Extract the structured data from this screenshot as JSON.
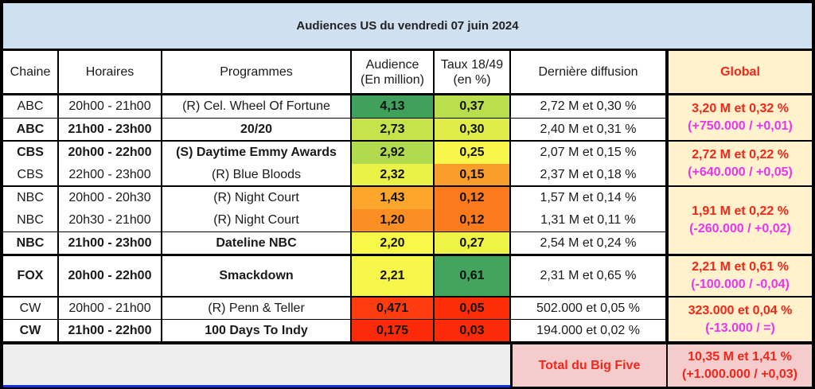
{
  "title": "Audiences US du vendredi 07 juin 2024",
  "headers": {
    "chaine": "Chaine",
    "horaires": "Horaires",
    "programmes": "Programmes",
    "audience_l1": "Audience",
    "audience_l2": "(En million)",
    "taux_l1": "Taux 18/49",
    "taux_l2": "(en %)",
    "derniere": "Dernière diffusion",
    "global": "Global"
  },
  "colors": {
    "title_bg": "#cfe0f1",
    "global_bg": "#fff2cc",
    "global_value": "#f3261a",
    "global_delta": "#ea35f0",
    "total_bg": "#f4cccc",
    "empty_bg": "#eeeeee"
  },
  "rows": [
    {
      "chaine": "ABC",
      "horaires": "20h00 - 21h00",
      "programme": "(R) Cel. Wheel Of Fortune",
      "audience": "4,13",
      "taux": "0,37",
      "derniere": "2,72 M et 0,30 %",
      "bold": false,
      "audience_color": "#3fa15c",
      "taux_color": "#b9de4e"
    },
    {
      "chaine": "ABC",
      "horaires": "21h00 - 23h00",
      "programme": "20/20",
      "audience": "2,73",
      "taux": "0,30",
      "derniere": "2,40 M et 0,31 %",
      "bold": true,
      "audience_color": "#c6e34c",
      "taux_color": "#dfec49"
    },
    {
      "chaine": "CBS",
      "horaires": "20h00 - 22h00",
      "programme": "(S) Daytime Emmy Awards",
      "audience": "2,92",
      "taux": "0,25",
      "derniere": "2,07 M et 0,15 %",
      "bold": true,
      "audience_color": "#b2da4f",
      "taux_color": "#f8f64a"
    },
    {
      "chaine": "CBS",
      "horaires": "22h00 - 23h00",
      "programme": "(R) Blue Bloods",
      "audience": "2,32",
      "taux": "0,15",
      "derniere": "2,37 M et 0,18 %",
      "bold": false,
      "audience_color": "#eaf248",
      "taux_color": "#fb9d2a"
    },
    {
      "chaine": "NBC",
      "horaires": "20h00 - 20h30",
      "programme": "(R) Night Court",
      "audience": "1,43",
      "taux": "0,12",
      "derniere": "1,57 M et 0,14 %",
      "bold": false,
      "audience_color": "#fca62b",
      "taux_color": "#fb7a1c"
    },
    {
      "chaine": "NBC",
      "horaires": "20h30 - 21h00",
      "programme": "(R) Night Court",
      "audience": "1,20",
      "taux": "0,12",
      "derniere": "1,31 M et 0,11 %",
      "bold": false,
      "audience_color": "#fb8f23",
      "taux_color": "#fb7a1c"
    },
    {
      "chaine": "NBC",
      "horaires": "21h00 - 23h00",
      "programme": "Dateline NBC",
      "audience": "2,20",
      "taux": "0,27",
      "derniere": "2,54 M et 0,24 %",
      "bold": true,
      "audience_color": "#f8f848",
      "taux_color": "#eef346"
    },
    {
      "chaine": "FOX",
      "horaires": "20h00 - 22h00",
      "programme": "Smackdown",
      "audience": "2,21",
      "taux": "0,61",
      "derniere": "2,31 M et 0,65 %",
      "bold": true,
      "audience_color": "#f6f74a",
      "taux_color": "#43a45e"
    },
    {
      "chaine": "CW",
      "horaires": "20h00 - 21h00",
      "programme": "(R) Penn & Teller",
      "audience": "0,471",
      "taux": "0,05",
      "derniere": "502.000 et 0,05 %",
      "bold": false,
      "audience_color": "#fd3c10",
      "taux_color": "#fd2d0a"
    },
    {
      "chaine": "CW",
      "horaires": "21h00 - 22h00",
      "programme": "100 Days To Indy",
      "audience": "0,175",
      "taux": "0,03",
      "derniere": "194.000 et 0,02 %",
      "bold": true,
      "audience_color": "#fd2a0a",
      "taux_color": "#fd2a0a"
    }
  ],
  "global": [
    {
      "network": "ABC",
      "value": "3,20 M et 0,32 %",
      "delta": "(+750.000 / +0,01)"
    },
    {
      "network": "CBS",
      "value": "2,72 M et 0,22 %",
      "delta": "(+640.000 / +0,05)"
    },
    {
      "network": "NBC",
      "value": "1,91 M et 0,22 %",
      "delta": "(-260.000 / +0,02)"
    },
    {
      "network": "FOX",
      "value": "2,21 M et 0,61 %",
      "delta": "(-100.000 / -0,04)"
    },
    {
      "network": "CW",
      "value": "323.000 et 0,04 %",
      "delta": "(-13.000 / =)"
    }
  ],
  "total": {
    "label": "Total du Big Five",
    "value": "10,35 M et 1,41 %",
    "delta": "(+1.000.000 / +0,03)"
  }
}
